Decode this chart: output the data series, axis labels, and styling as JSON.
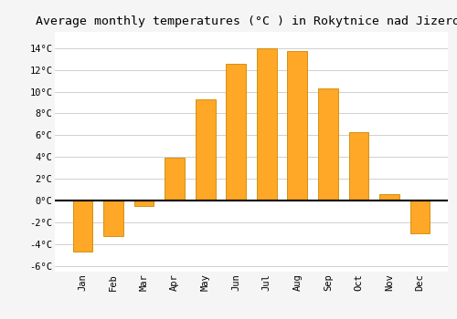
{
  "months": [
    "Jan",
    "Feb",
    "Mar",
    "Apr",
    "May",
    "Jun",
    "Jul",
    "Aug",
    "Sep",
    "Oct",
    "Nov",
    "Dec"
  ],
  "values": [
    -4.7,
    -3.3,
    -0.5,
    3.9,
    9.3,
    12.6,
    14.0,
    13.7,
    10.3,
    6.3,
    0.6,
    -3.0
  ],
  "bar_color": "#FFA726",
  "bar_edge_color": "#CC8800",
  "title": "Average monthly temperatures (°C ) in Rokytnice nad Jizerou",
  "title_fontsize": 9.5,
  "ytick_labels": [
    "-6°C",
    "-4°C",
    "-2°C",
    "0°C",
    "2°C",
    "4°C",
    "6°C",
    "8°C",
    "10°C",
    "12°C",
    "14°C"
  ],
  "ytick_values": [
    -6,
    -4,
    -2,
    0,
    2,
    4,
    6,
    8,
    10,
    12,
    14
  ],
  "ylim": [
    -6.5,
    15.5
  ],
  "background_color": "#f5f5f5",
  "plot_bg_color": "#ffffff",
  "grid_color": "#d0d0d0",
  "zero_line_color": "#000000"
}
